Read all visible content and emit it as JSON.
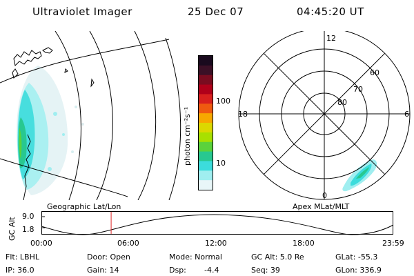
{
  "header": {
    "title": "Ultraviolet Imager",
    "date": "25 Dec 07",
    "time": "04:45:20 UT"
  },
  "colorbar": {
    "unit_label": "photon cm⁻²s⁻¹",
    "ticks": [
      "100",
      "10"
    ],
    "colors": [
      "#1a0a1e",
      "#3b1026",
      "#7a0c20",
      "#b0001a",
      "#d8201e",
      "#ef5a10",
      "#f7a800",
      "#dcd800",
      "#a8e000",
      "#5ad23c",
      "#28c890",
      "#3cdcdc",
      "#a0eef0",
      "#e8f6f8"
    ]
  },
  "polar": {
    "mlt_labels": {
      "top": "12",
      "left": "18",
      "right": "6",
      "bottom": "0"
    },
    "lat_labels": [
      "60",
      "70",
      "80"
    ]
  },
  "panels": {
    "geo_label": "Geographic Lat/Lon",
    "apex_label": "Apex MLat/MLT"
  },
  "altitude_strip": {
    "axis_label": "GC Alt",
    "y_ticks": [
      "9.0",
      "1.8"
    ],
    "x_ticks": [
      "00:00",
      "06:00",
      "12:00",
      "18:00",
      "23:59"
    ],
    "current_time_fraction": 0.197
  },
  "footer": {
    "flt": "Flt: LBHL",
    "ip": "IP: 36.0",
    "door": "Door: Open",
    "gain": "Gain: 14",
    "mode": "Mode: Normal",
    "dsp_label": "Dsp:",
    "dsp_value": "-4.4",
    "gc_alt": "GC Alt: 5.0 Re",
    "seq": "Seq: 39",
    "glat": "GLat: -55.3",
    "glon": "GLon: 336.9"
  },
  "colors": {
    "aurora_cyan": "#3cdcdc",
    "aurora_teal": "#28c890",
    "aurora_green": "#5ad23c",
    "marker_red": "#dd2222"
  }
}
